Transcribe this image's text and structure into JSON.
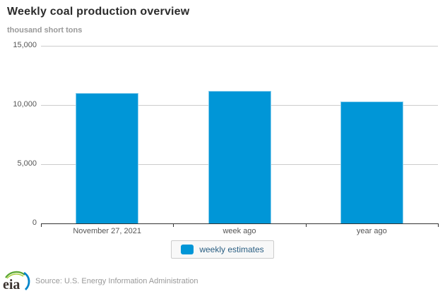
{
  "header": {
    "title": "Weekly coal production overview",
    "subtitle": "thousand short tons"
  },
  "chart_data": {
    "type": "bar",
    "title": "Weekly coal production overview",
    "ylabel": "thousand short tons",
    "categories": [
      "November 27, 2021",
      "week ago",
      "year ago"
    ],
    "series": [
      {
        "name": "weekly estimates",
        "values": [
          11000,
          11200,
          10300
        ]
      }
    ],
    "ylim": [
      0,
      15000
    ],
    "yticks": [
      {
        "value": 0,
        "label": "0"
      },
      {
        "value": 5000,
        "label": "5,000"
      },
      {
        "value": 10000,
        "label": "10,000"
      },
      {
        "value": 15000,
        "label": "15,000"
      }
    ],
    "grid": true,
    "legend_position": "bottom",
    "bar_color": "#0096d7"
  },
  "legend": {
    "label": "weekly estimates",
    "swatch_color": "#0096d7"
  },
  "footer": {
    "logo_text": "eia",
    "source": "Source: U.S. Energy Information Administration"
  },
  "colors": {
    "accent_blue": "#0096d7",
    "grid": "#cccccc",
    "axis": "#333333",
    "tick_label": "#555555",
    "muted_text": "#999999",
    "legend_text": "#2a5e82",
    "logo_green": "#5aa632",
    "logo_lime": "#a6ce39",
    "logo_blue": "#0084c9"
  }
}
